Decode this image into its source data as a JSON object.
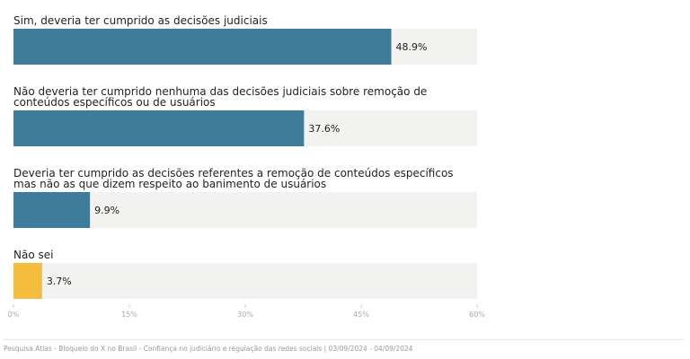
{
  "chart_data": {
    "type": "bar",
    "orientation": "horizontal",
    "categories": [
      "Sim, deveria ter cumprido as decisões judiciais",
      "Não deveria ter cumprido nenhuma das decisões judiciais sobre remoção de conteúdos específicos ou de usuários",
      "Deveria ter cumprido as decisões referentes a remoção de conteúdos específicos mas não as que dizem respeito ao banimento de usuários",
      "Não sei"
    ],
    "values": [
      48.9,
      37.6,
      9.9,
      3.7
    ],
    "value_labels": [
      "48.9%",
      "37.6%",
      "9.9%",
      "3.7%"
    ],
    "bar_colors": [
      "#3f7c99",
      "#3f7c99",
      "#3f7c99",
      "#f4bd3e"
    ],
    "track_color": "#f2f2f0",
    "xlim": [
      0,
      60
    ],
    "x_ticks": [
      0,
      15,
      30,
      45,
      60
    ],
    "x_tick_labels": [
      "0%",
      "15%",
      "30%",
      "45%",
      "60%"
    ],
    "grid": false
  },
  "source": "Pesquisa Atlas - Bloqueio do X no Brasil - Confiança no judiciário e regulação das redes sociais | 03/09/2024 - 04/09/2024"
}
